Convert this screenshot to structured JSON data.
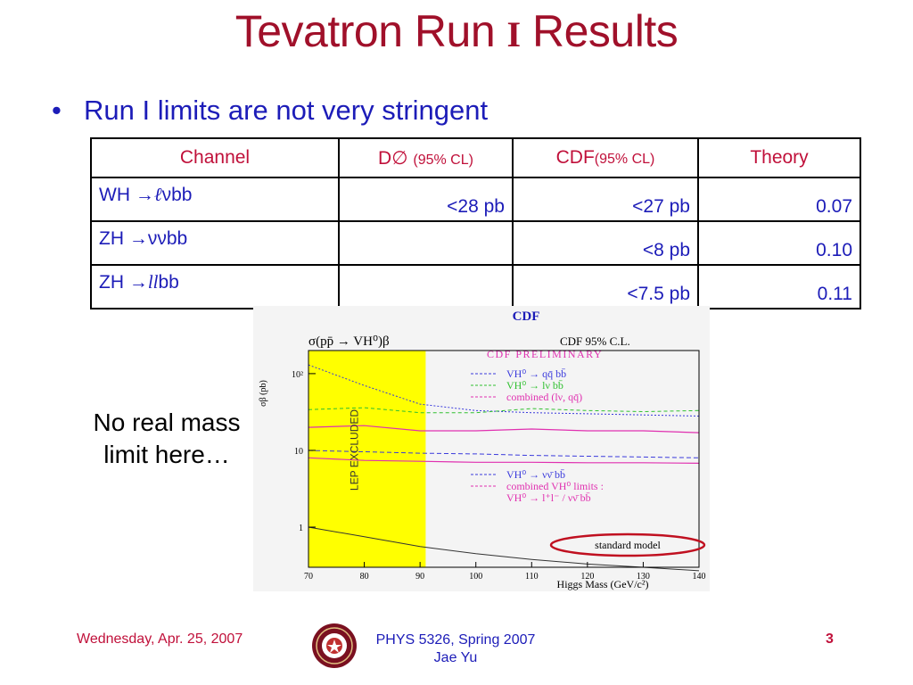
{
  "slide": {
    "title_pre": "Tevatron Run ",
    "title_roman": "I",
    "title_post": " Results",
    "bullet": "Run I limits are not very stringent",
    "note_line1": "No real mass",
    "note_line2": "limit here…"
  },
  "table": {
    "headers": {
      "channel": "Channel",
      "d0": "D∅",
      "d0_cl": "(95% CL)",
      "cdf": "CDF",
      "cdf_cl": "(95% CL)",
      "theory": "Theory"
    },
    "rows": [
      {
        "ch_pre": "WH →",
        "ch_mid": "ℓ",
        "ch_post": "νbb",
        "d0": "<28 pb",
        "cdf": "<27 pb",
        "theory": "0.07"
      },
      {
        "ch_pre": "ZH →",
        "ch_mid": "",
        "ch_post": "ννbb",
        "d0": "",
        "cdf": "<8 pb",
        "theory": "0.10"
      },
      {
        "ch_pre": "ZH →",
        "ch_mid": "ll",
        "ch_post": "bb",
        "d0": "",
        "cdf": "<7.5 pb",
        "theory": "0.11"
      }
    ]
  },
  "plot": {
    "header": "CDF",
    "sigma_title": "σ(pp̄ → VH⁰)β",
    "cl_title": "CDF  95% C.L.",
    "preliminary": "CDF PRELIMINARY",
    "ylabel": "σβ (pb)",
    "xlabel": "Higgs Mass (GeV/c²)",
    "lep_label": "LEP EXCLUDED",
    "legend_upper": [
      {
        "text": "VH⁰ → qq̄ bb̄",
        "color": "#3a3adc"
      },
      {
        "text": "VH⁰ → lν bb̄",
        "color": "#30c030"
      },
      {
        "text": "combined (lν, qq̄)",
        "color": "#e030b0"
      }
    ],
    "legend_lower": [
      {
        "text": "VH⁰ → νν̄ bb̄",
        "color": "#3a3adc"
      },
      {
        "text": "combined VH⁰ limits :",
        "color": "#e030b0"
      },
      {
        "text": "VH⁰ → l⁺l⁻ / νν̄  bb̄",
        "color": "#e030b0"
      }
    ],
    "sm_label": "standard model",
    "x_ticks": [
      "70",
      "80",
      "90",
      "100",
      "110",
      "120",
      "130",
      "140"
    ],
    "y_ticks": [
      "10²",
      "10",
      "1"
    ],
    "lep_fill": "#ffff00",
    "highlight_color": "#c01020"
  },
  "chart_data": {
    "type": "line",
    "title": "σ(pp̄ → VH⁰)β",
    "xlabel": "Higgs Mass (GeV/c²)",
    "ylabel": "σβ (pb)",
    "xlim": [
      70,
      140
    ],
    "ylim": [
      0.3,
      200
    ],
    "y_scale": "log",
    "x": [
      70,
      80,
      90,
      100,
      110,
      120,
      130,
      140
    ],
    "series": [
      {
        "name": "VH⁰ → qq̄ bb̄",
        "values": [
          130,
          70,
          40,
          33,
          31,
          30,
          29,
          28
        ]
      },
      {
        "name": "VH⁰ → lν bb̄",
        "values": [
          34,
          36,
          31,
          31,
          35,
          33,
          32,
          33
        ]
      },
      {
        "name": "combined (lν, qq̄)",
        "values": [
          20,
          21,
          18,
          18,
          19,
          18,
          18,
          17
        ]
      },
      {
        "name": "VH⁰ → νν̄ bb̄",
        "values": [
          10,
          9.6,
          9.2,
          9,
          8.6,
          8.4,
          8.2,
          8
        ]
      },
      {
        "name": "combined VH⁰ limits : VH⁰ → l⁺l⁻ / νν̄  bb̄",
        "values": [
          8,
          7.4,
          7.2,
          7,
          7,
          6.9,
          6.9,
          6.8
        ]
      },
      {
        "name": "standard model",
        "values": [
          1,
          0.75,
          0.56,
          0.45,
          0.38,
          0.33,
          0.3,
          0.27
        ]
      }
    ],
    "annotations": [
      "LEP EXCLUDED"
    ],
    "grid": false,
    "legend": "inside"
  },
  "footer": {
    "date": "Wednesday, Apr. 25, 2007",
    "course": "PHYS 5326, Spring 2007",
    "author": "Jae Yu",
    "page": "3"
  }
}
